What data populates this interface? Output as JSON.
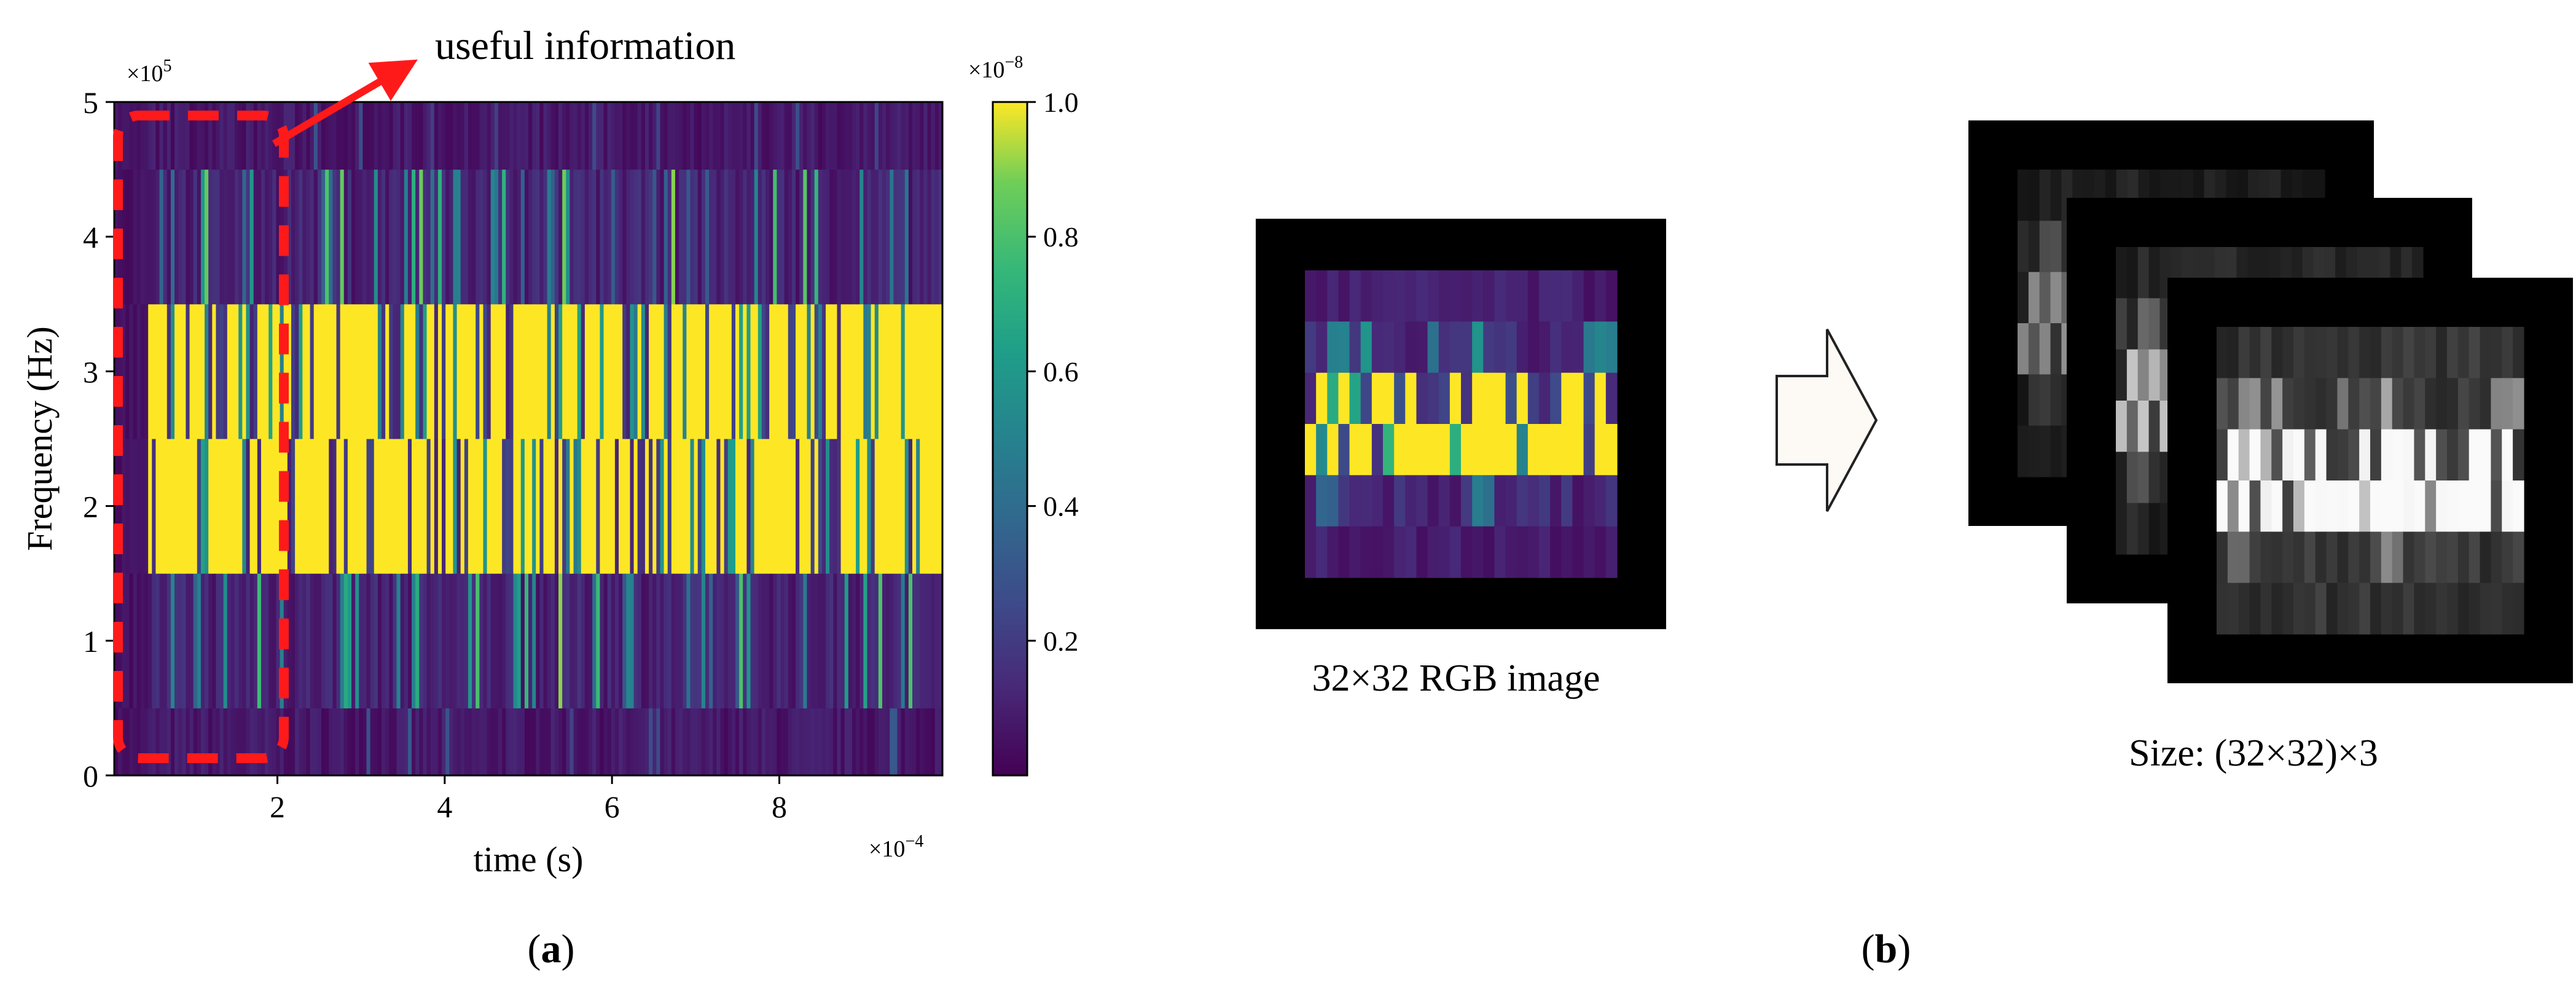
{
  "panel_a": {
    "annotation": "useful information",
    "caption_letter": "a",
    "x_multiplier_base": "×10",
    "x_multiplier_exp": "−4",
    "y_multiplier_base": "×10",
    "y_multiplier_exp": "5",
    "cb_multiplier_base": "×10",
    "cb_multiplier_exp": "−8",
    "highlight_color": "#ff1a1a"
  },
  "panel_b": {
    "input_label": "32×32 RGB image",
    "output_label": "Size: (32×32)×3",
    "caption_letter": "b"
  },
  "chart_data": {
    "type": "heatmap",
    "title": "",
    "xlabel": "time (s)",
    "ylabel": "Frequency (Hz)",
    "xlim": [
      0.05,
      9.95
    ],
    "ylim": [
      0,
      5
    ],
    "x_scale_note": "×10^-4",
    "y_scale_note": "×10^5",
    "colormap": "viridis",
    "colorbar": {
      "range": [
        0,
        1.0
      ],
      "ticks": [
        "0.2",
        "0.4",
        "0.6",
        "0.8",
        "1.0"
      ],
      "tick_values": [
        0.2,
        0.4,
        0.6,
        0.8,
        1.0
      ],
      "scale_note": "×10^-8"
    },
    "xticks": [
      "2",
      "4",
      "6",
      "8"
    ],
    "xtick_values": [
      2,
      4,
      6,
      8
    ],
    "yticks": [
      "0",
      "1",
      "2",
      "3",
      "4",
      "5"
    ],
    "ytick_values": [
      0,
      1,
      2,
      3,
      4,
      5
    ],
    "frequency_bands": [
      {
        "y0": 0.0,
        "y1": 0.5,
        "level": "low"
      },
      {
        "y0": 0.5,
        "y1": 1.5,
        "level": "mixed-low"
      },
      {
        "y0": 1.5,
        "y1": 2.5,
        "level": "high"
      },
      {
        "y0": 2.5,
        "y1": 3.5,
        "level": "high"
      },
      {
        "y0": 3.5,
        "y1": 4.5,
        "level": "mixed-low"
      },
      {
        "y0": 4.5,
        "y1": 5.0,
        "level": "low"
      }
    ],
    "grid": false,
    "highlight_region": {
      "x": [
        0.05,
        2.0
      ],
      "y": [
        0,
        5
      ],
      "label": "useful information"
    }
  }
}
